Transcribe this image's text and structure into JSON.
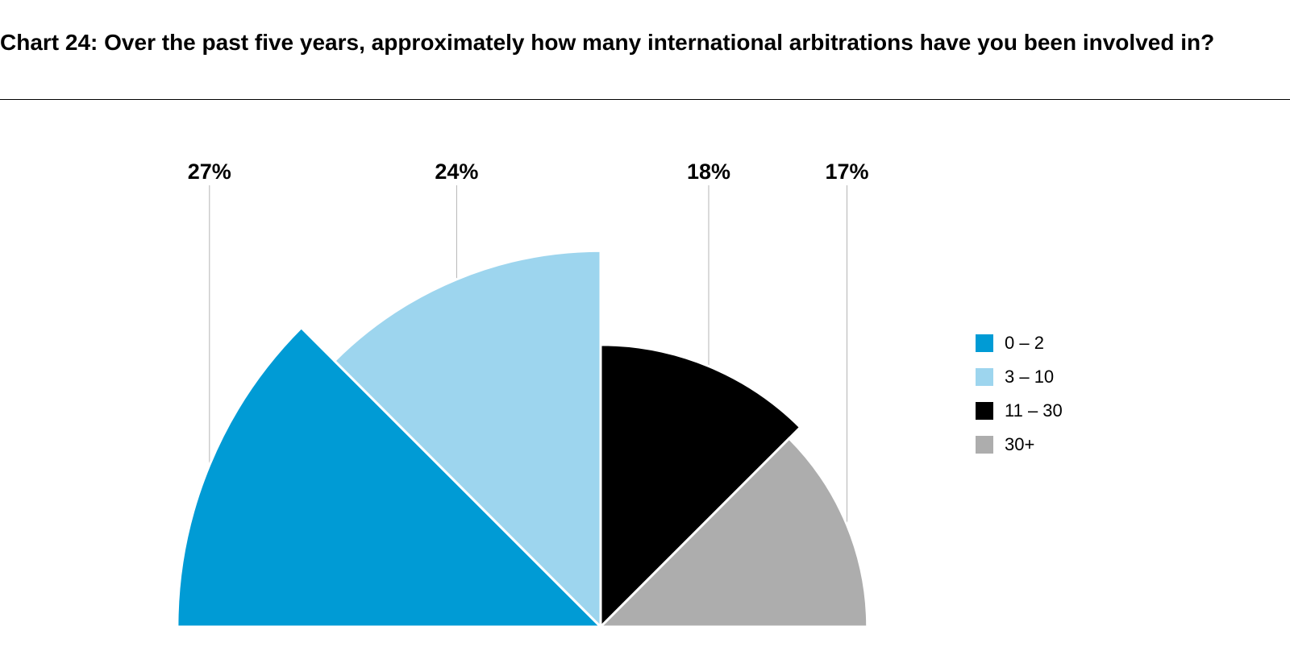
{
  "chart_data": {
    "type": "pie",
    "title": "Chart 24: Over the past five years, approximately how many international arbitrations have you been involved in?",
    "layout": "semi-circle rose (variable radius sectors)",
    "legend_position": "right",
    "slices": [
      {
        "name": "0 – 2",
        "value": 27,
        "label": "27%",
        "color": "#009bd5"
      },
      {
        "name": "3 – 10",
        "value": 24,
        "label": "24%",
        "color": "#9dd5ee"
      },
      {
        "name": "11 – 30",
        "value": 18,
        "label": "18%",
        "color": "#000000"
      },
      {
        "name": "30+",
        "value": 17,
        "label": "17%",
        "color": "#adadad"
      }
    ]
  }
}
